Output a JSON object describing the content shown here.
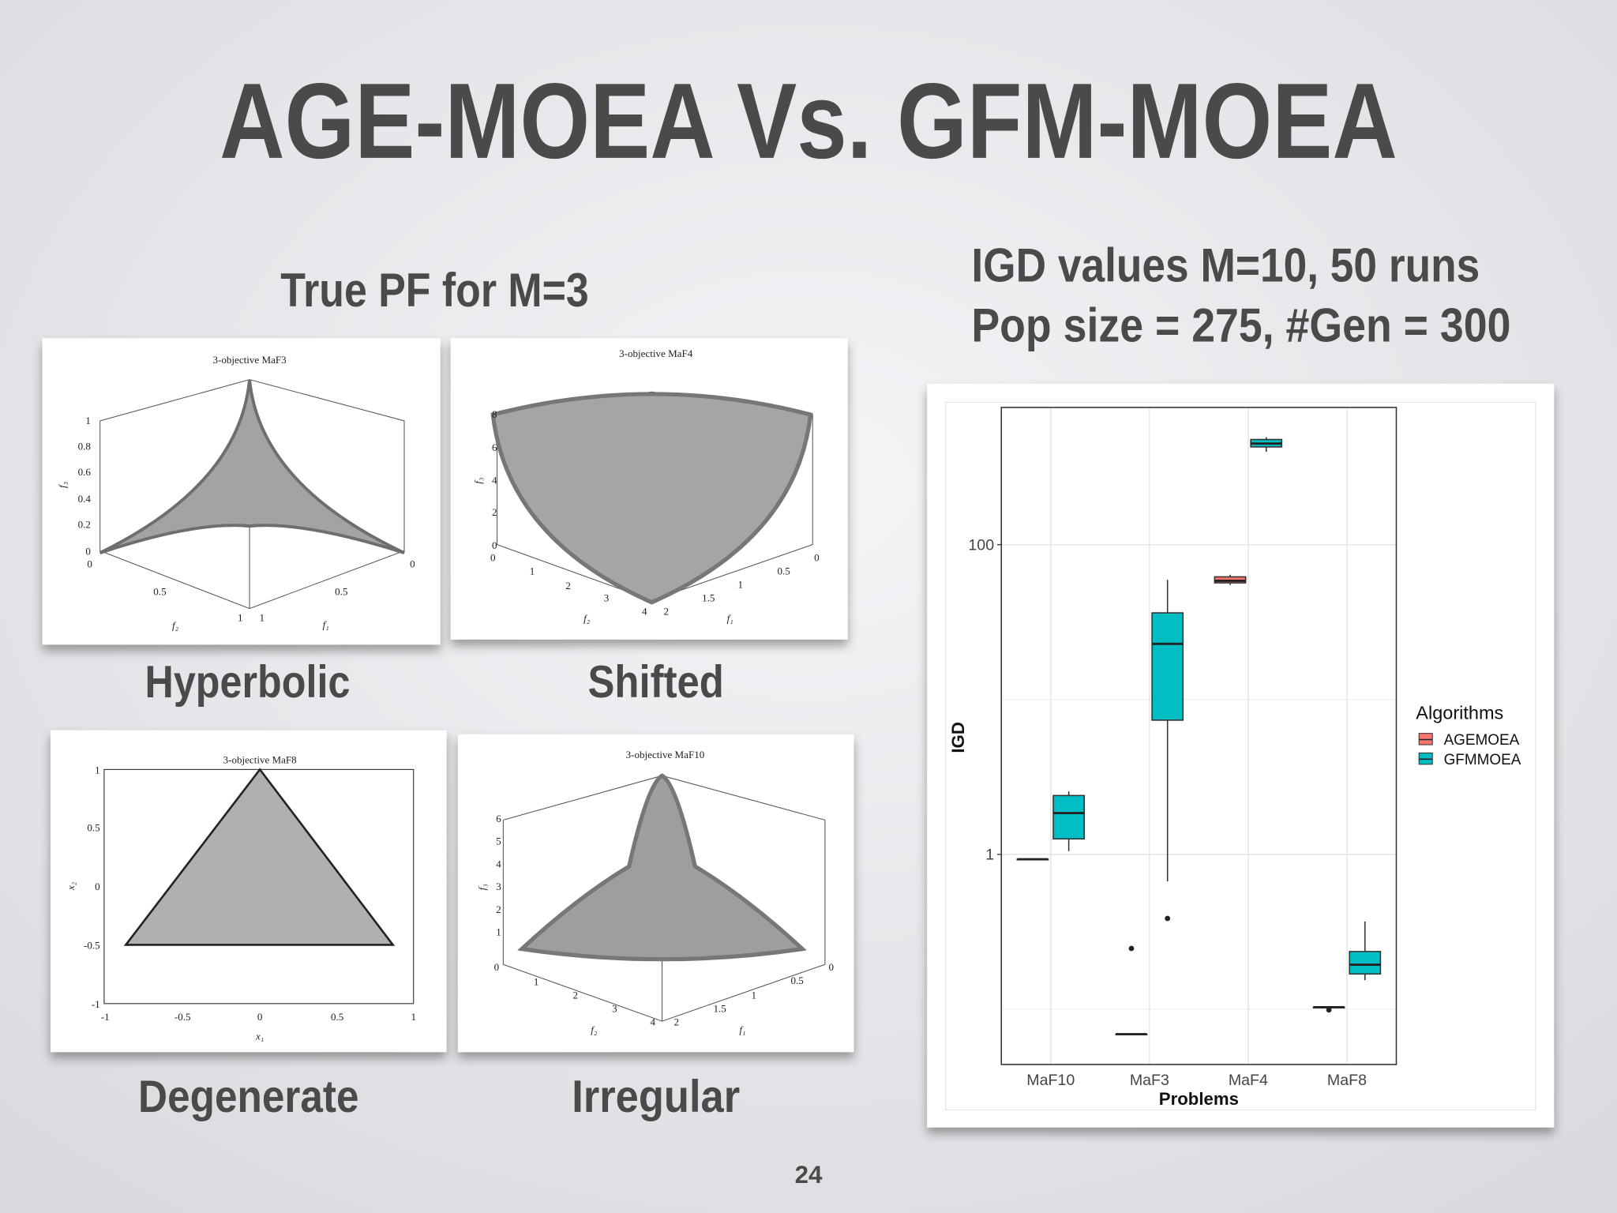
{
  "title": "AGE-MOEA Vs. GFM-MOEA",
  "left_heading": "True PF for M=3",
  "right_heading": [
    "IGD values M=10,  50 runs",
    "Pop size = 275,  #Gen = 300"
  ],
  "panels": [
    {
      "title": "3-objective MaF3",
      "caption": "Hyperbolic",
      "tick_labels": [
        "1",
        "0.8",
        "0.6",
        "0.4",
        "0.2",
        "0",
        "0",
        "0.5",
        "1",
        "0",
        "0.5",
        "1"
      ],
      "axis_labels": [
        "f₃",
        "f₂",
        "f₁"
      ]
    },
    {
      "title": "3-objective MaF4",
      "caption": "Shifted",
      "tick_labels": [
        "8",
        "6",
        "4",
        "2",
        "0",
        "0",
        "1",
        "2",
        "3",
        "4",
        "0",
        "0.5",
        "1",
        "1.5",
        "2"
      ],
      "axis_labels": [
        "f₃",
        "f₂",
        "f₁"
      ]
    },
    {
      "title": "3-objective MaF8",
      "caption": "Degenerate",
      "tick_labels": [
        "1",
        "0.5",
        "0",
        "-0.5",
        "-1",
        "-1",
        "-0.5",
        "0",
        "0.5",
        "1"
      ],
      "axis_labels": [
        "x₂",
        "x₁"
      ]
    },
    {
      "title": "3-objective MaF10",
      "caption": "Irregular",
      "tick_labels": [
        "6",
        "5",
        "4",
        "3",
        "2",
        "1",
        "0",
        "1",
        "2",
        "3",
        "4",
        "0",
        "0.5",
        "1",
        "1.5",
        "2"
      ],
      "axis_labels": [
        "f₃",
        "f₂",
        "f₁"
      ]
    }
  ],
  "chart_data": {
    "type": "boxplot",
    "x_label": "Problems",
    "y_label": "IGD",
    "legend_title": "Algorithms",
    "categories": [
      "MaF10",
      "MaF3",
      "MaF4",
      "MaF8"
    ],
    "scale": "log",
    "ylim": [
      0.044,
      770
    ],
    "yticks": [
      1,
      100
    ],
    "minor_yticks": [
      0.1,
      10
    ],
    "grid": true,
    "legend": "right",
    "series": [
      {
        "name": "AGEMOEA",
        "color": "#F8766D",
        "values": [
          {
            "min": 0.93,
            "q1": 0.93,
            "median": 0.93,
            "q3": 0.93,
            "max": 0.93,
            "outliers": []
          },
          {
            "min": 0.069,
            "q1": 0.069,
            "median": 0.069,
            "q3": 0.069,
            "max": 0.069,
            "outliers": [
              0.247
            ]
          },
          {
            "min": 55,
            "q1": 56.7,
            "median": 58.5,
            "q3": 62,
            "max": 64,
            "outliers": []
          },
          {
            "min": 0.103,
            "q1": 0.103,
            "median": 0.103,
            "q3": 0.103,
            "max": 0.103,
            "outliers": [
              0.099
            ]
          }
        ]
      },
      {
        "name": "GFMMOEA",
        "color": "#00BFC4",
        "values": [
          {
            "min": 1.05,
            "q1": 1.26,
            "median": 1.85,
            "q3": 2.4,
            "max": 2.55,
            "outliers": []
          },
          {
            "min": 0.67,
            "q1": 7.36,
            "median": 22.9,
            "q3": 36.3,
            "max": 59.3,
            "outliers": [
              0.386
            ]
          },
          {
            "min": 398,
            "q1": 428,
            "median": 450,
            "q3": 478,
            "max": 494,
            "outliers": []
          },
          {
            "min": 0.154,
            "q1": 0.169,
            "median": 0.194,
            "q3": 0.236,
            "max": 0.369,
            "outliers": []
          }
        ]
      }
    ]
  },
  "page_number": "24"
}
